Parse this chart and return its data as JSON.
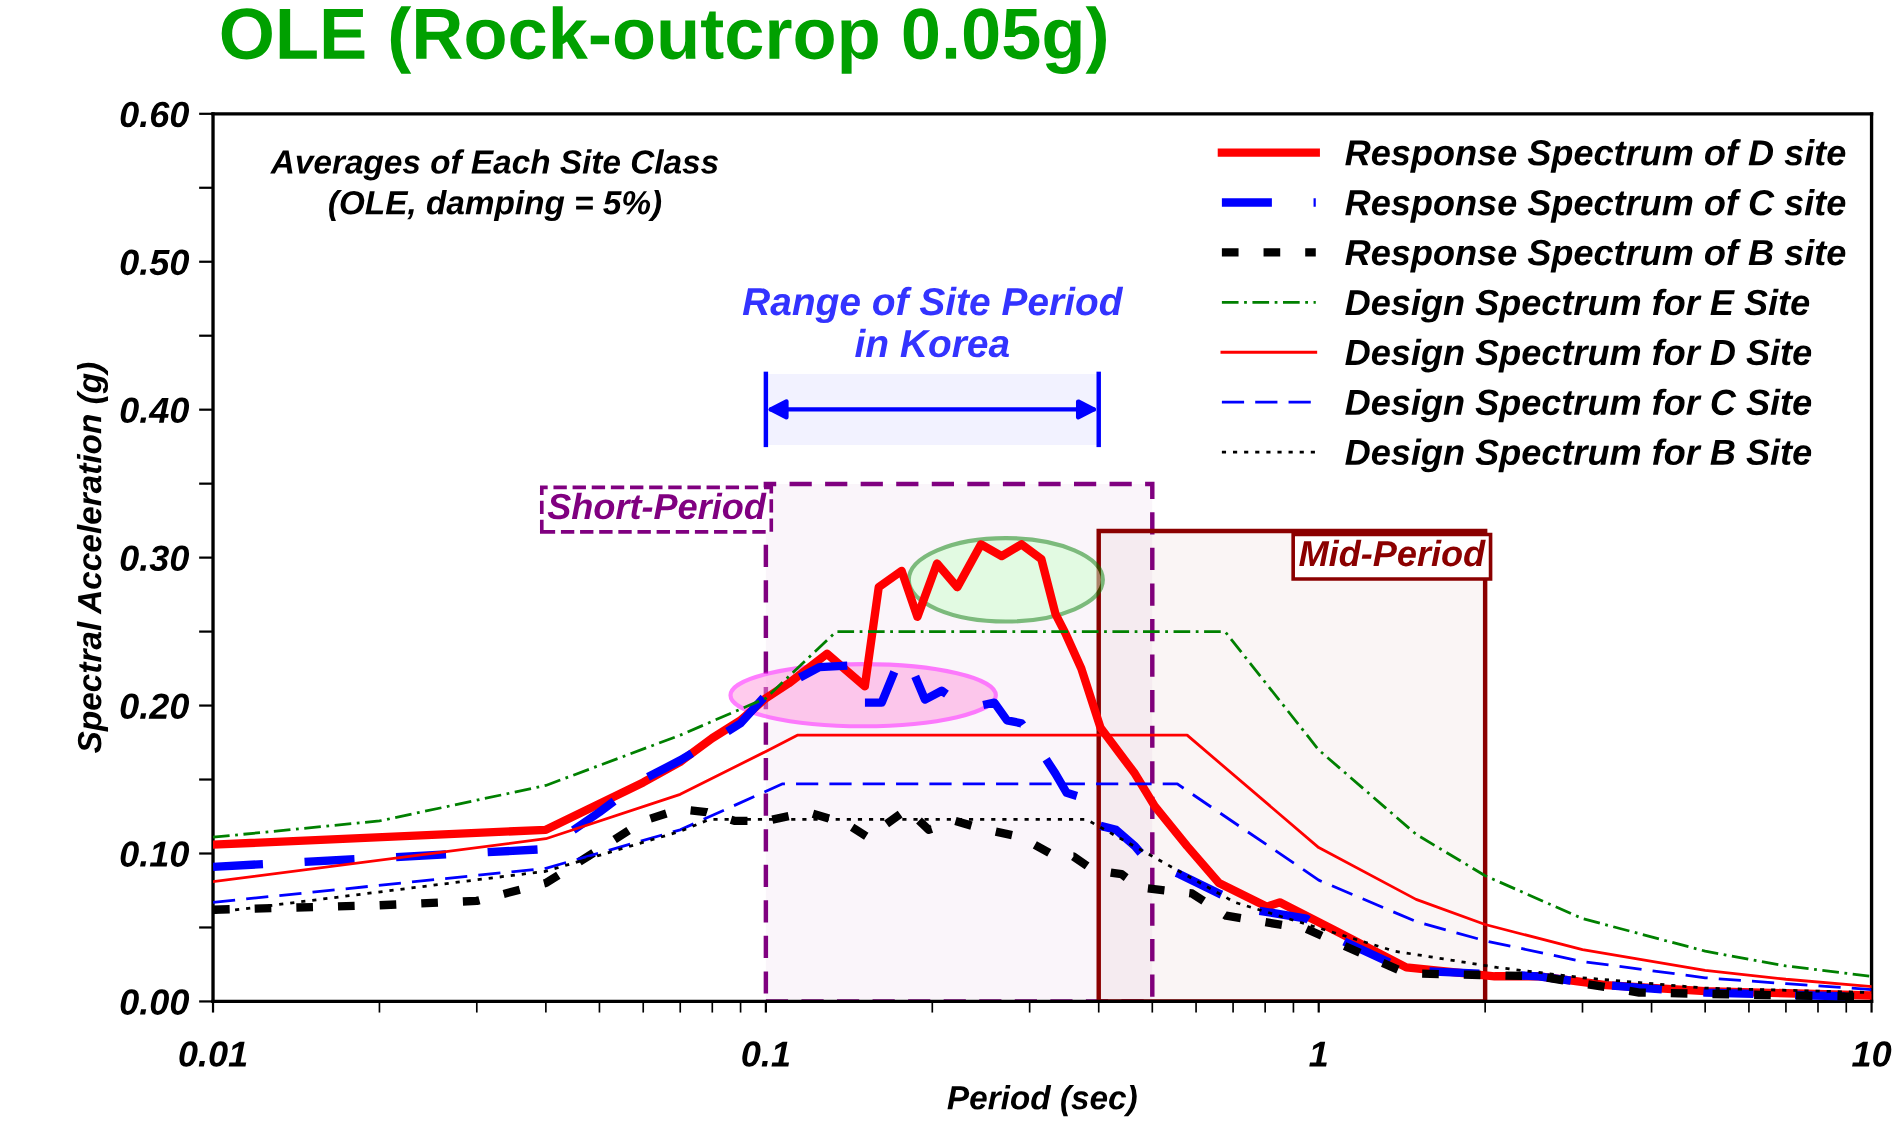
{
  "chart_data": {
    "type": "line",
    "title": "OLE (Rock-outcrop 0.05g)",
    "xlabel": "Period (sec)",
    "ylabel": "Spectral Acceleration (g)",
    "log": "x",
    "xlim": [
      0.01,
      10
    ],
    "xticks": [
      {
        "value": 0.01,
        "label": "0.01"
      },
      {
        "value": 0.1,
        "label": "0.1"
      },
      {
        "value": 1,
        "label": "1"
      },
      {
        "value": 10,
        "label": "10"
      }
    ],
    "ylim": [
      0,
      0.6
    ],
    "yticks": [
      {
        "value": 0,
        "label": "0.00"
      },
      {
        "value": 0.05,
        "label": null
      },
      {
        "value": 0.1,
        "label": "0.10"
      },
      {
        "value": 0.15,
        "label": null
      },
      {
        "value": 0.2,
        "label": "0.20"
      },
      {
        "value": 0.25,
        "label": null
      },
      {
        "value": 0.3,
        "label": "0.30"
      },
      {
        "value": 0.35,
        "label": null
      },
      {
        "value": 0.4,
        "label": "0.40"
      },
      {
        "value": 0.45,
        "label": null
      },
      {
        "value": 0.5,
        "label": "0.50"
      },
      {
        "value": 0.55,
        "label": null
      },
      {
        "value": 0.6,
        "label": "0.60"
      }
    ],
    "grid": false,
    "legend": "top right",
    "marker": "none",
    "annotations": [
      "Averages of Each Site Class\n(OLE, damping = 5%)"
    ],
    "bands": [
      {
        "axis": "x",
        "from": 0.1,
        "to": 0.5,
        "label": "Short-Period",
        "color": "#800080"
      },
      {
        "axis": "x",
        "from": 0.4,
        "to": 2.0,
        "label": "Mid-Period",
        "color": "#8b0000"
      },
      {
        "axis": "x",
        "from": 0.1,
        "to": 0.4,
        "label": "Range of Site Period\nin Korea",
        "color": "#0000ff"
      }
    ],
    "series": [
      {
        "name": "Response Spectrum of D site",
        "color": "#ff0000",
        "line_style": "solid",
        "x": [
          0.01,
          0.04,
          0.06,
          0.07,
          0.08,
          0.09,
          0.1,
          0.11,
          0.129,
          0.151,
          0.16,
          0.176,
          0.188,
          0.204,
          0.222,
          0.245,
          0.267,
          0.29,
          0.315,
          0.334,
          0.348,
          0.372,
          0.403,
          0.465,
          0.505,
          0.578,
          0.66,
          0.806,
          0.85,
          1.07,
          1.44,
          2.08,
          2.51,
          3.31,
          5,
          10
        ],
        "values": [
          0.106,
          0.116,
          0.148,
          0.162,
          0.178,
          0.19,
          0.205,
          0.215,
          0.235,
          0.213,
          0.28,
          0.291,
          0.26,
          0.296,
          0.28,
          0.309,
          0.301,
          0.309,
          0.299,
          0.262,
          0.249,
          0.225,
          0.185,
          0.154,
          0.132,
          0.105,
          0.08,
          0.064,
          0.067,
          0.048,
          0.023,
          0.017,
          0.017,
          0.011,
          0.007,
          0.004
        ]
      },
      {
        "name": "Response Spectrum of C site",
        "color": "#0000ff",
        "line_style": "dashed",
        "x": [
          0.01,
          0.04,
          0.05,
          0.06,
          0.07,
          0.08,
          0.09,
          0.1,
          0.11,
          0.125,
          0.141,
          0.151,
          0.162,
          0.173,
          0.18,
          0.194,
          0.208,
          0.231,
          0.259,
          0.273,
          0.29,
          0.307,
          0.334,
          0.35,
          0.372,
          0.39,
          0.43,
          0.465,
          0.49,
          0.56,
          0.66,
          0.76,
          0.95,
          1.09,
          1.44,
          2.5,
          3.3,
          5,
          10
        ],
        "values": [
          0.091,
          0.103,
          0.128,
          0.15,
          0.163,
          0.176,
          0.188,
          0.207,
          0.215,
          0.226,
          0.227,
          0.202,
          0.202,
          0.228,
          0.233,
          0.204,
          0.21,
          0.198,
          0.202,
          0.19,
          0.188,
          0.175,
          0.154,
          0.141,
          0.138,
          0.12,
          0.116,
          0.105,
          0.095,
          0.086,
          0.073,
          0.062,
          0.056,
          0.042,
          0.021,
          0.017,
          0.011,
          0.006,
          0.003
        ]
      },
      {
        "name": "Response Spectrum of B site",
        "color": "#000000",
        "line_style": "dotted",
        "x": [
          0.01,
          0.02,
          0.03,
          0.04,
          0.051,
          0.06,
          0.07,
          0.078,
          0.088,
          0.1,
          0.119,
          0.14,
          0.153,
          0.18,
          0.197,
          0.22,
          0.245,
          0.29,
          0.334,
          0.36,
          0.39,
          0.44,
          0.475,
          0.59,
          0.68,
          0.95,
          1.44,
          2.5,
          3.8,
          10
        ],
        "values": [
          0.062,
          0.065,
          0.068,
          0.08,
          0.105,
          0.122,
          0.13,
          0.128,
          0.122,
          0.122,
          0.128,
          0.12,
          0.111,
          0.13,
          0.116,
          0.122,
          0.117,
          0.111,
          0.098,
          0.098,
          0.089,
          0.086,
          0.077,
          0.073,
          0.058,
          0.049,
          0.019,
          0.017,
          0.006,
          0.003
        ]
      },
      {
        "name": "Design Spectrum for E Site",
        "color": "#008000",
        "line_style": "dashdot",
        "x": [
          0.01,
          0.02,
          0.04,
          0.07,
          0.1,
          0.134,
          0.677,
          1,
          1.5,
          2,
          3,
          5,
          7,
          10
        ],
        "values": [
          0.111,
          0.122,
          0.146,
          0.18,
          0.205,
          0.25,
          0.25,
          0.17,
          0.113,
          0.085,
          0.056,
          0.034,
          0.024,
          0.017
        ]
      },
      {
        "name": "Design Spectrum for D Site",
        "color": "#ff0000",
        "line_style": "solid",
        "x": [
          0.01,
          0.04,
          0.07,
          0.1,
          0.114,
          0.578,
          1,
          1.5,
          2,
          3,
          5,
          7,
          10
        ],
        "values": [
          0.081,
          0.11,
          0.14,
          0.169,
          0.18,
          0.18,
          0.104,
          0.069,
          0.052,
          0.035,
          0.021,
          0.015,
          0.01
        ]
      },
      {
        "name": "Design Spectrum for C Site",
        "color": "#0000ff",
        "line_style": "dashed",
        "x": [
          0.01,
          0.04,
          0.07,
          0.107,
          0.555,
          1,
          1.5,
          2,
          3,
          5,
          7,
          10
        ],
        "values": [
          0.067,
          0.09,
          0.116,
          0.147,
          0.147,
          0.082,
          0.054,
          0.041,
          0.027,
          0.016,
          0.012,
          0.008
        ]
      },
      {
        "name": "Design Spectrum for B Site",
        "color": "#000000",
        "line_style": "dotted",
        "x": [
          0.01,
          0.04,
          0.07,
          0.079,
          0.38,
          0.705,
          1.37,
          2.1,
          3,
          5,
          10
        ],
        "values": [
          0.06,
          0.088,
          0.115,
          0.123,
          0.123,
          0.067,
          0.034,
          0.023,
          0.016,
          0.009,
          0.006
        ]
      }
    ]
  }
}
